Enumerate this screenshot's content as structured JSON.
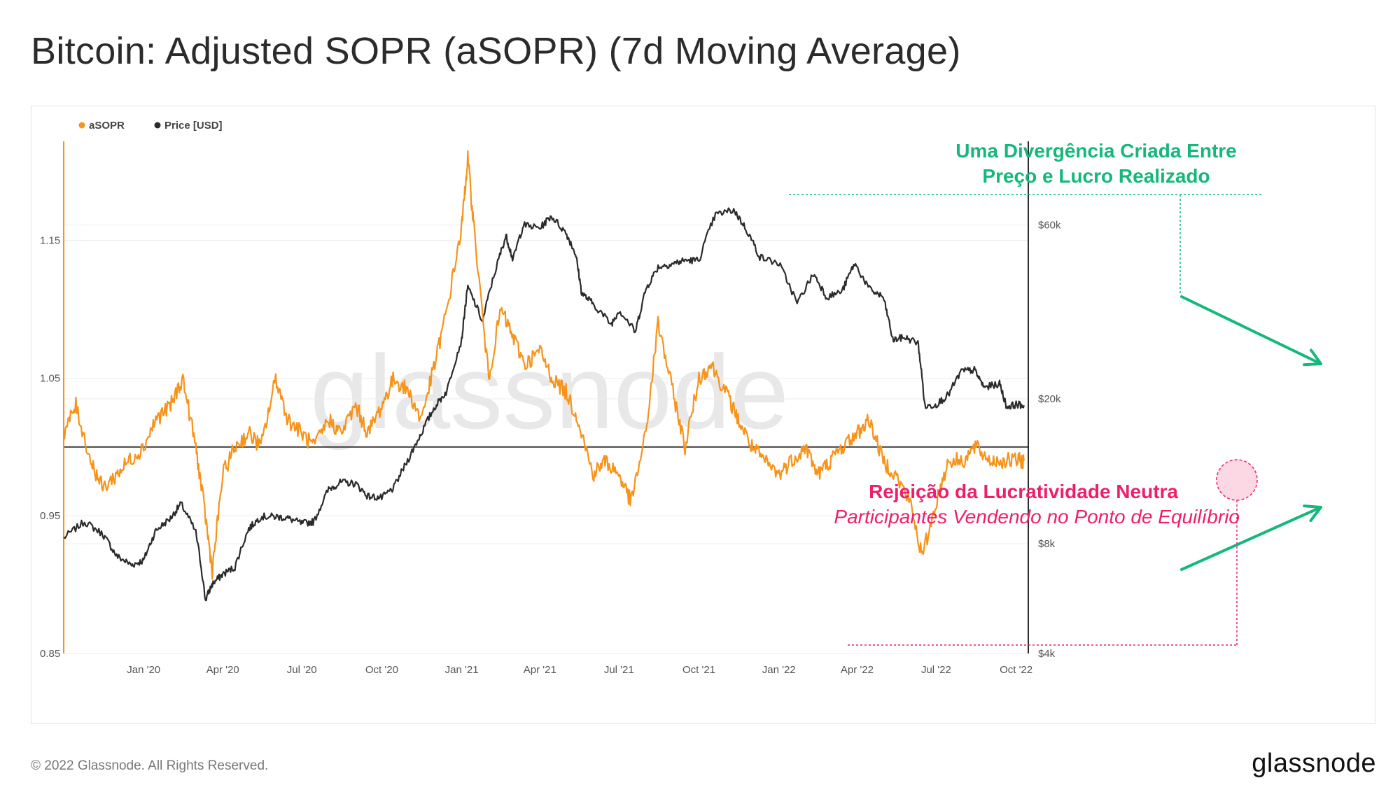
{
  "title": "Bitcoin: Adjusted SOPR (aSOPR) (7d Moving Average)",
  "footer": {
    "copyright": "© 2022 Glassnode. All Rights Reserved.",
    "logo": "glassnode"
  },
  "watermark": "glassnode",
  "colors": {
    "asopr": "#f7931a",
    "price": "#2b2b2b",
    "reference_line": "#444444",
    "annotation_green": "#14b87a",
    "annotation_pink": "#ee1f6a",
    "grid": "#ececec",
    "axis_text": "#555555"
  },
  "chart_data": {
    "type": "line",
    "legend": {
      "placement": "top-left",
      "items": [
        {
          "name": "aSOPR",
          "color": "#f7931a"
        },
        {
          "name": "Price [USD]",
          "color": "#2b2b2b"
        }
      ]
    },
    "x_ticks": [
      "Jan '20",
      "Apr '20",
      "Jul '20",
      "Oct '20",
      "Jan '21",
      "Apr '21",
      "Jul '21",
      "Oct '21",
      "Jan '22",
      "Apr '22",
      "Jul '22",
      "Oct '22"
    ],
    "x_tick_dates": [
      "2020-01-01",
      "2020-04-01",
      "2020-07-01",
      "2020-10-01",
      "2021-01-01",
      "2021-04-01",
      "2021-07-01",
      "2021-10-01",
      "2022-01-01",
      "2022-04-01",
      "2022-07-01",
      "2022-10-01"
    ],
    "x_range": [
      "2019-10-01",
      "2022-10-15"
    ],
    "y_left": {
      "scale": "linear",
      "ticks": [
        0.85,
        0.95,
        1.05,
        1.15
      ],
      "tick_labels": [
        "0.85",
        "0.95",
        "1.05",
        "1.15"
      ],
      "range": [
        0.85,
        1.22
      ]
    },
    "y_right": {
      "scale": "log",
      "ticks": [
        4000,
        8000,
        20000,
        60000
      ],
      "tick_labels": [
        "$4k",
        "$8k",
        "$20k",
        "$60k"
      ],
      "range": [
        4000,
        100000
      ]
    },
    "reference_line": {
      "axis": "left",
      "value": 1.0
    },
    "grid": true,
    "series": [
      {
        "name": "aSOPR",
        "axis": "left",
        "x": [
          "2019-10-01",
          "2019-10-15",
          "2019-11-01",
          "2019-11-15",
          "2019-12-01",
          "2019-12-15",
          "2020-01-01",
          "2020-01-15",
          "2020-02-01",
          "2020-02-15",
          "2020-03-01",
          "2020-03-12",
          "2020-03-20",
          "2020-04-01",
          "2020-04-15",
          "2020-05-01",
          "2020-05-15",
          "2020-06-01",
          "2020-06-15",
          "2020-07-01",
          "2020-07-15",
          "2020-08-01",
          "2020-08-15",
          "2020-09-01",
          "2020-09-15",
          "2020-10-01",
          "2020-10-15",
          "2020-11-01",
          "2020-11-15",
          "2020-12-01",
          "2020-12-15",
          "2021-01-01",
          "2021-01-08",
          "2021-01-15",
          "2021-02-01",
          "2021-02-15",
          "2021-03-01",
          "2021-03-15",
          "2021-04-01",
          "2021-04-15",
          "2021-05-01",
          "2021-05-15",
          "2021-06-01",
          "2021-06-15",
          "2021-07-01",
          "2021-07-15",
          "2021-08-01",
          "2021-08-15",
          "2021-09-01",
          "2021-09-15",
          "2021-10-01",
          "2021-10-15",
          "2021-11-01",
          "2021-11-15",
          "2021-12-01",
          "2021-12-15",
          "2022-01-01",
          "2022-01-15",
          "2022-02-01",
          "2022-02-15",
          "2022-03-01",
          "2022-03-15",
          "2022-04-01",
          "2022-04-15",
          "2022-05-01",
          "2022-05-15",
          "2022-06-01",
          "2022-06-15",
          "2022-07-01",
          "2022-07-15",
          "2022-08-01",
          "2022-08-15",
          "2022-09-01",
          "2022-09-15",
          "2022-10-01",
          "2022-10-10"
        ],
        "values": [
          1.01,
          1.03,
          0.99,
          0.97,
          0.98,
          0.99,
          1.0,
          1.02,
          1.03,
          1.05,
          1.0,
          0.95,
          0.91,
          0.98,
          1.0,
          1.01,
          1.0,
          1.05,
          1.02,
          1.01,
          1.0,
          1.02,
          1.01,
          1.03,
          1.01,
          1.03,
          1.05,
          1.04,
          1.02,
          1.06,
          1.1,
          1.16,
          1.21,
          1.16,
          1.05,
          1.1,
          1.08,
          1.06,
          1.07,
          1.05,
          1.04,
          1.02,
          0.98,
          0.99,
          0.98,
          0.96,
          1.01,
          1.09,
          1.04,
          1.0,
          1.05,
          1.06,
          1.04,
          1.02,
          1.0,
          0.99,
          0.98,
          0.99,
          1.0,
          0.98,
          0.99,
          1.0,
          1.01,
          1.02,
          0.99,
          0.98,
          0.96,
          0.92,
          0.96,
          0.99,
          0.99,
          1.0,
          0.99,
          0.99,
          0.99,
          0.99
        ]
      },
      {
        "name": "Price [USD]",
        "axis": "right",
        "x": [
          "2019-10-01",
          "2019-10-25",
          "2019-11-15",
          "2019-12-01",
          "2019-12-18",
          "2020-01-01",
          "2020-01-15",
          "2020-02-01",
          "2020-02-13",
          "2020-03-01",
          "2020-03-12",
          "2020-03-20",
          "2020-04-01",
          "2020-04-15",
          "2020-05-01",
          "2020-05-15",
          "2020-06-01",
          "2020-06-15",
          "2020-07-01",
          "2020-07-15",
          "2020-08-01",
          "2020-08-15",
          "2020-09-01",
          "2020-09-15",
          "2020-10-01",
          "2020-10-15",
          "2020-11-01",
          "2020-11-15",
          "2020-12-01",
          "2020-12-15",
          "2021-01-01",
          "2021-01-08",
          "2021-01-25",
          "2021-02-10",
          "2021-02-21",
          "2021-03-01",
          "2021-03-13",
          "2021-04-01",
          "2021-04-14",
          "2021-05-01",
          "2021-05-12",
          "2021-05-19",
          "2021-06-01",
          "2021-06-22",
          "2021-07-01",
          "2021-07-20",
          "2021-08-01",
          "2021-08-15",
          "2021-09-01",
          "2021-09-15",
          "2021-10-01",
          "2021-10-20",
          "2021-11-10",
          "2021-11-25",
          "2021-12-10",
          "2022-01-01",
          "2022-01-22",
          "2022-02-10",
          "2022-02-25",
          "2022-03-15",
          "2022-03-29",
          "2022-04-15",
          "2022-05-01",
          "2022-05-12",
          "2022-05-25",
          "2022-06-10",
          "2022-06-18",
          "2022-07-01",
          "2022-07-15",
          "2022-07-30",
          "2022-08-14",
          "2022-08-25",
          "2022-09-12",
          "2022-09-20",
          "2022-10-01",
          "2022-10-10"
        ],
        "values": [
          8300,
          9200,
          8500,
          7400,
          7000,
          7200,
          8700,
          9400,
          10300,
          8600,
          5600,
          6200,
          6600,
          6900,
          8800,
          9500,
          9500,
          9400,
          9100,
          9200,
          11300,
          11800,
          11700,
          10800,
          10700,
          11400,
          13700,
          16000,
          19000,
          21000,
          29000,
          40500,
          32500,
          46000,
          56000,
          48000,
          60000,
          58800,
          63500,
          57000,
          50000,
          39000,
          36500,
          32000,
          35000,
          30500,
          40000,
          46000,
          47000,
          48000,
          48000,
          64000,
          66000,
          58000,
          49000,
          47000,
          36500,
          44000,
          38000,
          39500,
          47000,
          40000,
          38000,
          29000,
          29500,
          28500,
          19000,
          19300,
          20500,
          23800,
          24000,
          21500,
          22000,
          19000,
          19300,
          19200
        ]
      }
    ],
    "annotations": [
      {
        "name": "divergence",
        "color": "#14b87a",
        "lines": [
          "Uma Divergência Criada Entre",
          "Preço e Lucro Realizado"
        ]
      },
      {
        "name": "neutral-profitability",
        "color": "#ee1f6a",
        "title": "Rejeição da Lucratividade Neutra",
        "subtitle": "Participantes Vendendo no Ponto de Equilíbrio"
      }
    ]
  }
}
